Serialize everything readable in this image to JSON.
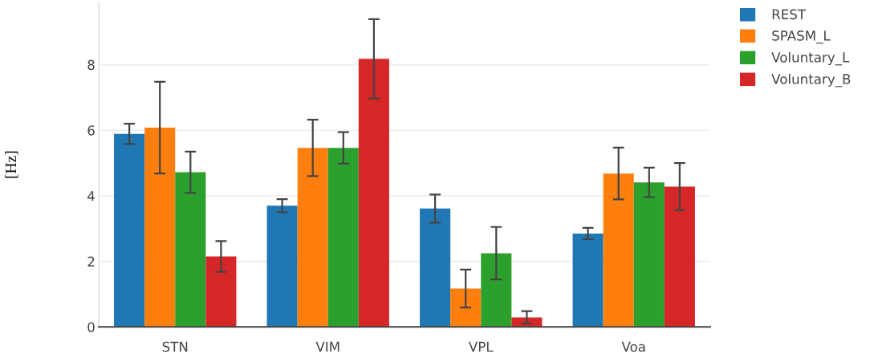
{
  "chart_data": {
    "type": "bar",
    "ylabel": "[Hz]",
    "categories": [
      "STN",
      "VIM",
      "VPL",
      "Voa"
    ],
    "series": [
      {
        "name": "REST",
        "color": "#1f77b4",
        "values": [
          5.89,
          3.7,
          3.61,
          2.85
        ],
        "errors": [
          0.31,
          0.2,
          0.43,
          0.17
        ]
      },
      {
        "name": "SPASM_L",
        "color": "#ff7f0e",
        "values": [
          6.08,
          5.46,
          1.17,
          4.68
        ],
        "errors": [
          1.4,
          0.86,
          0.58,
          0.79
        ]
      },
      {
        "name": "Voluntary_L",
        "color": "#2ca02c",
        "values": [
          4.72,
          5.46,
          2.25,
          4.41
        ],
        "errors": [
          0.63,
          0.48,
          0.8,
          0.45
        ]
      },
      {
        "name": "Voluntary_B",
        "color": "#d62728",
        "values": [
          2.15,
          8.18,
          0.29,
          4.28
        ],
        "errors": [
          0.47,
          1.21,
          0.19,
          0.72
        ]
      }
    ],
    "ylim": [
      0,
      9.9
    ],
    "yticks": [
      0,
      2,
      4,
      6,
      8
    ],
    "grid": "y",
    "legend": "top right"
  }
}
